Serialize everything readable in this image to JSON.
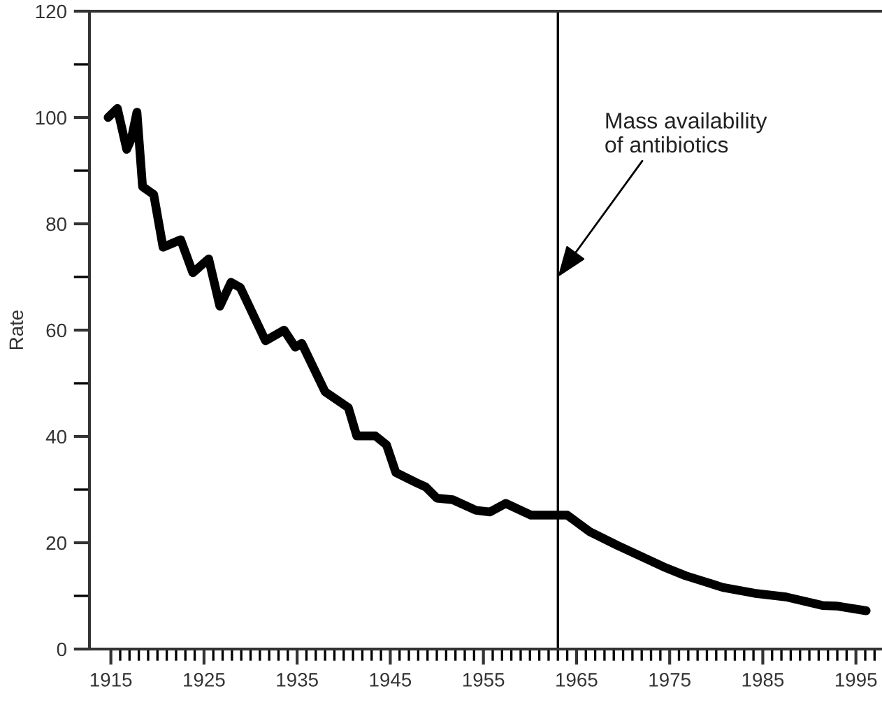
{
  "chart_data": {
    "type": "line",
    "ylabel": "Rate",
    "x": [
      1914.7,
      1915.7,
      1916.7,
      1917.2,
      1917.8,
      1918.4,
      1919.6,
      1920.6,
      1922.5,
      1923.8,
      1925.5,
      1926.7,
      1927.9,
      1928.9,
      1931.6,
      1933.6,
      1934.8,
      1935.5,
      1938.0,
      1940.5,
      1941.4,
      1943.4,
      1944.6,
      1945.6,
      1947.8,
      1948.8,
      1950.0,
      1951.7,
      1954.2,
      1955.7,
      1957.4,
      1960.1,
      1964.0,
      1966.4,
      1969.4,
      1974.3,
      1976.7,
      1980.7,
      1984.1,
      1987.5,
      1991.4,
      1992.9,
      1996.1
    ],
    "series": [
      {
        "color": "#000000",
        "values": [
          100,
          101.7,
          94,
          96,
          101,
          87,
          85.5,
          75.6,
          77,
          70.8,
          73.4,
          64.5,
          69,
          68,
          58,
          60,
          56.8,
          57.5,
          48.4,
          45.4,
          40.1,
          40.1,
          38.4,
          33.2,
          31.3,
          30.5,
          28.4,
          28.1,
          26.1,
          25.8,
          27.4,
          25.2,
          25.2,
          22.1,
          19.5,
          15.5,
          13.8,
          11.6,
          10.5,
          9.8,
          8.2,
          8.1,
          7.2
        ]
      }
    ],
    "xlim": [
      1912.7,
      1997.8
    ],
    "ylim": [
      0,
      120
    ],
    "xticks": [
      1915,
      {
        "value": 1916,
        "label": null
      },
      {
        "value": 1917,
        "label": null
      },
      {
        "value": 1918,
        "label": null
      },
      {
        "value": 1919,
        "label": null
      },
      {
        "value": 1920,
        "label": null
      },
      {
        "value": 1921,
        "label": null
      },
      {
        "value": 1922,
        "label": null
      },
      {
        "value": 1923,
        "label": null
      },
      {
        "value": 1924,
        "label": null
      },
      1925,
      {
        "value": 1926,
        "label": null
      },
      {
        "value": 1927,
        "label": null
      },
      {
        "value": 1928,
        "label": null
      },
      {
        "value": 1929,
        "label": null
      },
      {
        "value": 1930,
        "label": null
      },
      {
        "value": 1931,
        "label": null
      },
      {
        "value": 1932,
        "label": null
      },
      {
        "value": 1933,
        "label": null
      },
      {
        "value": 1934,
        "label": null
      },
      1935,
      {
        "value": 1936,
        "label": null
      },
      {
        "value": 1937,
        "label": null
      },
      {
        "value": 1938,
        "label": null
      },
      {
        "value": 1939,
        "label": null
      },
      {
        "value": 1940,
        "label": null
      },
      {
        "value": 1941,
        "label": null
      },
      {
        "value": 1942,
        "label": null
      },
      {
        "value": 1943,
        "label": null
      },
      {
        "value": 1944,
        "label": null
      },
      1945,
      {
        "value": 1946,
        "label": null
      },
      {
        "value": 1947,
        "label": null
      },
      {
        "value": 1948,
        "label": null
      },
      {
        "value": 1949,
        "label": null
      },
      {
        "value": 1950,
        "label": null
      },
      {
        "value": 1951,
        "label": null
      },
      {
        "value": 1952,
        "label": null
      },
      {
        "value": 1953,
        "label": null
      },
      {
        "value": 1954,
        "label": null
      },
      1955,
      {
        "value": 1956,
        "label": null
      },
      {
        "value": 1957,
        "label": null
      },
      {
        "value": 1958,
        "label": null
      },
      {
        "value": 1959,
        "label": null
      },
      {
        "value": 1960,
        "label": null
      },
      {
        "value": 1961,
        "label": null
      },
      {
        "value": 1962,
        "label": null
      },
      {
        "value": 1963,
        "label": null
      },
      {
        "value": 1964,
        "label": null
      },
      1965,
      {
        "value": 1966,
        "label": null
      },
      {
        "value": 1967,
        "label": null
      },
      {
        "value": 1968,
        "label": null
      },
      {
        "value": 1969,
        "label": null
      },
      {
        "value": 1970,
        "label": null
      },
      {
        "value": 1971,
        "label": null
      },
      {
        "value": 1972,
        "label": null
      },
      {
        "value": 1973,
        "label": null
      },
      {
        "value": 1974,
        "label": null
      },
      1975,
      {
        "value": 1976,
        "label": null
      },
      {
        "value": 1977,
        "label": null
      },
      {
        "value": 1978,
        "label": null
      },
      {
        "value": 1979,
        "label": null
      },
      {
        "value": 1980,
        "label": null
      },
      {
        "value": 1981,
        "label": null
      },
      {
        "value": 1982,
        "label": null
      },
      {
        "value": 1983,
        "label": null
      },
      {
        "value": 1984,
        "label": null
      },
      1985,
      {
        "value": 1986,
        "label": null
      },
      {
        "value": 1987,
        "label": null
      },
      {
        "value": 1988,
        "label": null
      },
      {
        "value": 1989,
        "label": null
      },
      {
        "value": 1990,
        "label": null
      },
      {
        "value": 1991,
        "label": null
      },
      {
        "value": 1992,
        "label": null
      },
      {
        "value": 1993,
        "label": null
      },
      {
        "value": 1994,
        "label": null
      },
      1995,
      {
        "value": 1996,
        "label": null
      },
      {
        "value": 1997,
        "label": null
      }
    ],
    "yticks": [
      0,
      {
        "value": 10,
        "label": null
      },
      20,
      {
        "value": 30,
        "label": null
      },
      40,
      {
        "value": 50,
        "label": null
      },
      60,
      {
        "value": 70,
        "label": null
      },
      80,
      {
        "value": 90,
        "label": null
      },
      100,
      {
        "value": 110,
        "label": null
      },
      120
    ],
    "ref_lines": [
      {
        "axis": "x",
        "value": 1963,
        "color": "#000000"
      }
    ],
    "annotations": [
      {
        "text": "Mass availability\nof antibiotics",
        "x": 1963,
        "y": 70
      }
    ],
    "grid": false,
    "legend": false,
    "marker": "none",
    "line_style": "solid"
  }
}
